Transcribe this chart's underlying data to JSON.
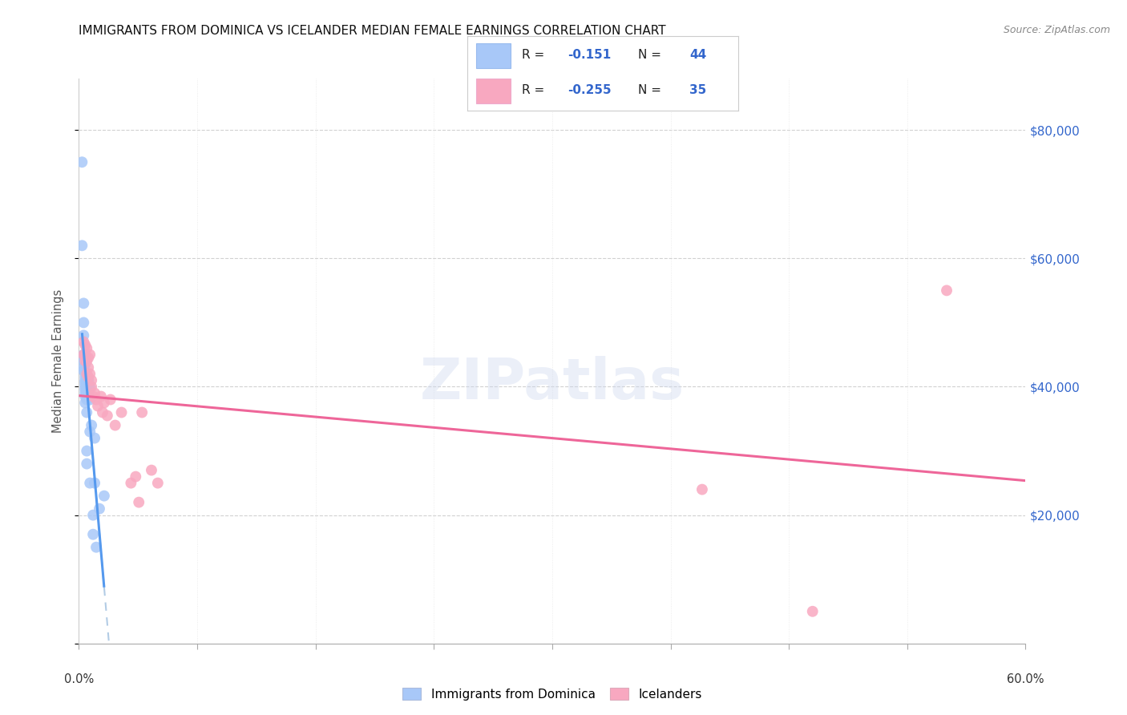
{
  "title": "IMMIGRANTS FROM DOMINICA VS ICELANDER MEDIAN FEMALE EARNINGS CORRELATION CHART",
  "source": "Source: ZipAtlas.com",
  "ylabel": "Median Female Earnings",
  "xlim": [
    0.0,
    0.6
  ],
  "ylim": [
    0,
    88000
  ],
  "color_blue": "#a8c8f8",
  "color_pink": "#f8a8c0",
  "trendline_blue": "#5599ee",
  "trendline_blue_dash": "#99bbdd",
  "trendline_pink": "#ee6699",
  "dominica_x": [
    0.002,
    0.002,
    0.003,
    0.003,
    0.003,
    0.003,
    0.003,
    0.003,
    0.003,
    0.004,
    0.004,
    0.004,
    0.004,
    0.004,
    0.004,
    0.004,
    0.004,
    0.004,
    0.004,
    0.004,
    0.004,
    0.005,
    0.005,
    0.005,
    0.005,
    0.005,
    0.005,
    0.005,
    0.006,
    0.006,
    0.006,
    0.006,
    0.007,
    0.007,
    0.007,
    0.007,
    0.008,
    0.009,
    0.009,
    0.01,
    0.01,
    0.011,
    0.013,
    0.016
  ],
  "dominica_y": [
    75000,
    62000,
    53000,
    50000,
    48000,
    45000,
    44000,
    43000,
    42500,
    43500,
    42000,
    41500,
    41000,
    40800,
    40500,
    40200,
    39800,
    39500,
    39000,
    38500,
    37500,
    41000,
    40000,
    39000,
    38000,
    36000,
    30000,
    28000,
    41000,
    40500,
    40000,
    39000,
    40000,
    38000,
    33000,
    25000,
    34000,
    20000,
    17000,
    25000,
    32000,
    15000,
    21000,
    23000
  ],
  "iceland_x": [
    0.003,
    0.003,
    0.004,
    0.004,
    0.004,
    0.005,
    0.005,
    0.005,
    0.006,
    0.006,
    0.006,
    0.007,
    0.007,
    0.008,
    0.008,
    0.009,
    0.01,
    0.011,
    0.012,
    0.014,
    0.015,
    0.016,
    0.018,
    0.02,
    0.023,
    0.027,
    0.033,
    0.036,
    0.038,
    0.04,
    0.046,
    0.05,
    0.395,
    0.465,
    0.55
  ],
  "iceland_y": [
    47000,
    45000,
    46500,
    45000,
    44000,
    46000,
    44000,
    42000,
    44500,
    43000,
    41500,
    45000,
    42000,
    41000,
    40000,
    38500,
    39000,
    38000,
    37000,
    38500,
    36000,
    37500,
    35500,
    38000,
    34000,
    36000,
    25000,
    26000,
    22000,
    36000,
    27000,
    25000,
    24000,
    5000,
    55000
  ]
}
